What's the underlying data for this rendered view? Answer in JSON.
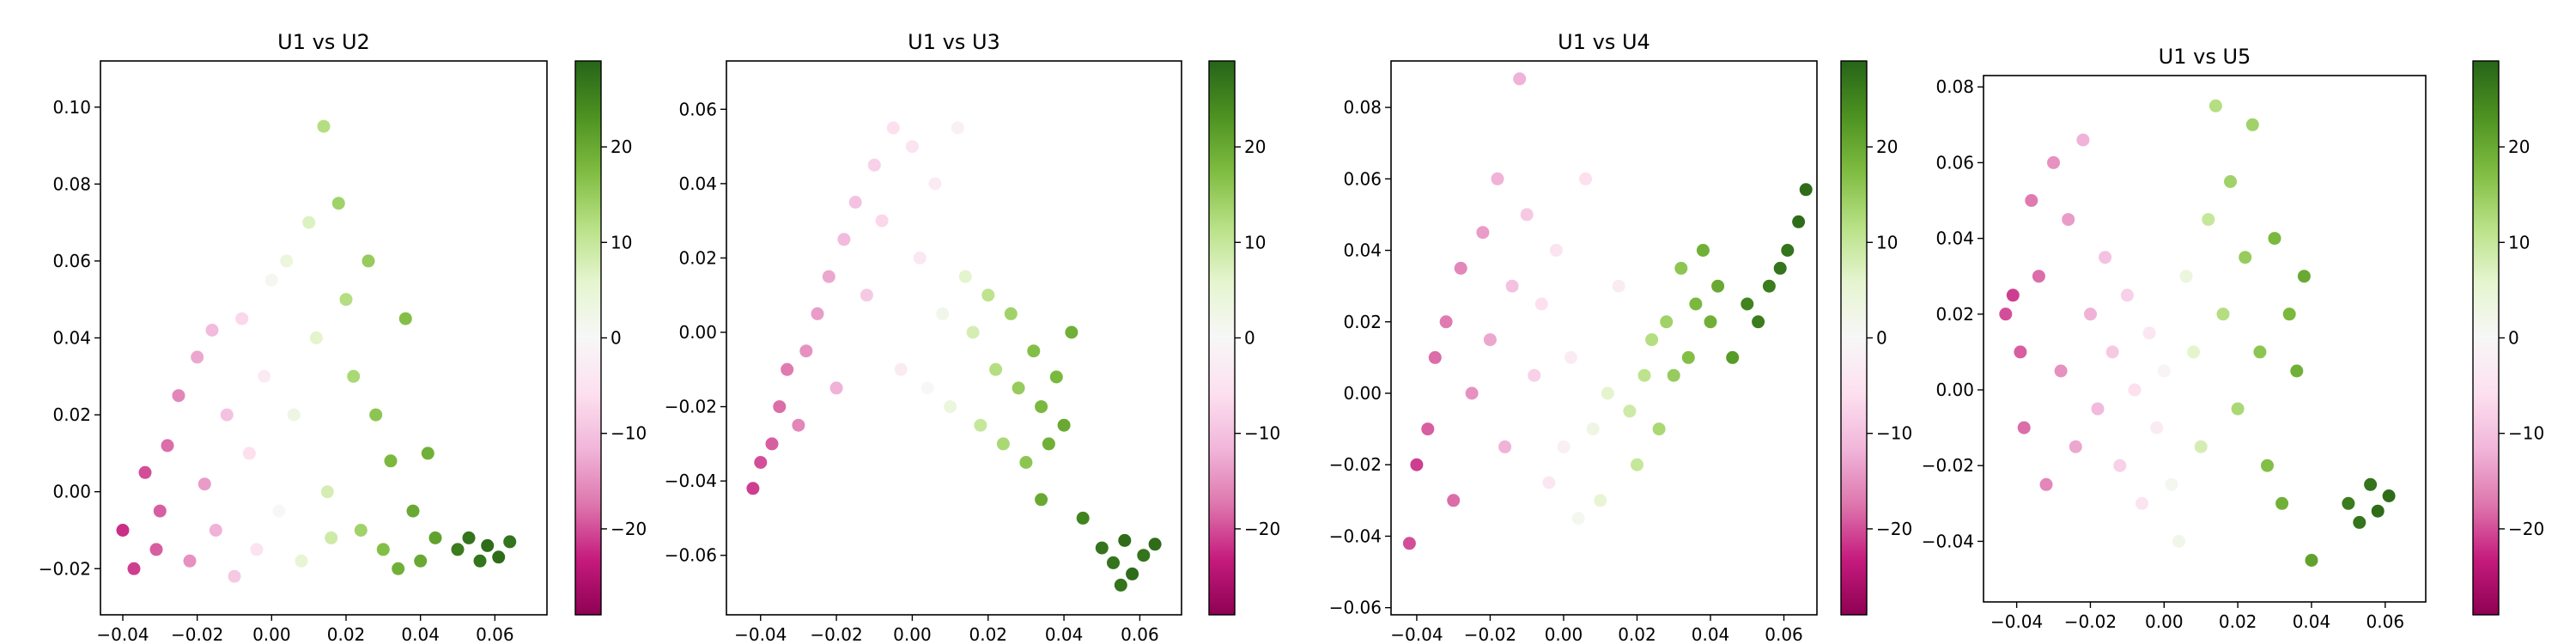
{
  "chart_data": [
    {
      "type": "scatter",
      "title": "U1 vs U2",
      "xlim": [
        -0.046,
        0.074
      ],
      "ylim": [
        -0.032,
        0.112
      ],
      "xticks": [
        -0.04,
        -0.02,
        0.0,
        0.02,
        0.04,
        0.06
      ],
      "xtick_labels": [
        "−0.04",
        "−0.02",
        "0.00",
        "0.02",
        "0.04",
        "0.06"
      ],
      "yticks": [
        -0.02,
        0.0,
        0.02,
        0.04,
        0.06,
        0.08,
        0.1
      ],
      "ytick_labels": [
        "−0.02",
        "0.00",
        "0.02",
        "0.04",
        "0.06",
        "0.08",
        "0.10"
      ],
      "colorbar": {
        "range": [
          -29,
          29
        ],
        "ticks": [
          -20,
          -10,
          0,
          10,
          20
        ],
        "tick_labels": [
          "−20",
          "−10",
          "0",
          "10",
          "20"
        ],
        "colormap": "PiYG"
      },
      "points": [
        [
          -0.04,
          -0.01,
          -22
        ],
        [
          -0.037,
          -0.02,
          -21
        ],
        [
          -0.034,
          0.005,
          -20
        ],
        [
          -0.031,
          -0.015,
          -19
        ],
        [
          -0.028,
          0.012,
          -18
        ],
        [
          -0.03,
          -0.005,
          -19
        ],
        [
          -0.025,
          0.025,
          -16
        ],
        [
          -0.022,
          -0.018,
          -15
        ],
        [
          -0.02,
          0.035,
          -13
        ],
        [
          -0.018,
          0.002,
          -14
        ],
        [
          -0.016,
          0.042,
          -11
        ],
        [
          -0.015,
          -0.01,
          -12
        ],
        [
          -0.012,
          0.02,
          -10
        ],
        [
          -0.01,
          -0.022,
          -9
        ],
        [
          -0.008,
          0.045,
          -7
        ],
        [
          -0.006,
          0.01,
          -6
        ],
        [
          -0.004,
          -0.015,
          -5
        ],
        [
          -0.002,
          0.03,
          -3
        ],
        [
          0.0,
          0.055,
          1
        ],
        [
          0.002,
          -0.005,
          0
        ],
        [
          0.004,
          0.06,
          4
        ],
        [
          0.006,
          0.02,
          3
        ],
        [
          0.008,
          -0.018,
          5
        ],
        [
          0.01,
          0.07,
          7
        ],
        [
          0.012,
          0.04,
          6
        ],
        [
          0.014,
          0.095,
          12
        ],
        [
          0.015,
          0.0,
          8
        ],
        [
          0.016,
          -0.012,
          9
        ],
        [
          0.018,
          0.075,
          14
        ],
        [
          0.02,
          0.05,
          12
        ],
        [
          0.022,
          0.03,
          13
        ],
        [
          0.024,
          -0.01,
          14
        ],
        [
          0.026,
          0.06,
          15
        ],
        [
          0.028,
          0.02,
          16
        ],
        [
          0.03,
          -0.015,
          17
        ],
        [
          0.032,
          0.008,
          18
        ],
        [
          0.034,
          -0.02,
          19
        ],
        [
          0.036,
          0.045,
          17
        ],
        [
          0.038,
          -0.005,
          20
        ],
        [
          0.04,
          -0.018,
          20
        ],
        [
          0.042,
          0.01,
          19
        ],
        [
          0.044,
          -0.012,
          21
        ],
        [
          0.05,
          -0.015,
          26
        ],
        [
          0.053,
          -0.012,
          27
        ],
        [
          0.056,
          -0.018,
          27
        ],
        [
          0.058,
          -0.014,
          28
        ],
        [
          0.061,
          -0.017,
          28
        ],
        [
          0.064,
          -0.013,
          27
        ]
      ]
    },
    {
      "type": "scatter",
      "title": "U1 vs U3",
      "xlim": [
        -0.049,
        0.071
      ],
      "ylim": [
        -0.076,
        0.073
      ],
      "xticks": [
        -0.04,
        -0.02,
        0.0,
        0.02,
        0.04,
        0.06
      ],
      "xtick_labels": [
        "−0.04",
        "−0.02",
        "0.00",
        "0.02",
        "0.04",
        "0.06"
      ],
      "yticks": [
        -0.06,
        -0.04,
        -0.02,
        0.0,
        0.02,
        0.04,
        0.06
      ],
      "ytick_labels": [
        "−0.06",
        "−0.04",
        "−0.02",
        "0.00",
        "0.02",
        "0.04",
        "0.06"
      ],
      "colorbar": {
        "range": [
          -29,
          29
        ],
        "ticks": [
          -20,
          -10,
          0,
          10,
          20
        ],
        "tick_labels": [
          "−20",
          "−10",
          "0",
          "10",
          "20"
        ],
        "colormap": "PiYG"
      },
      "points": [
        [
          -0.042,
          -0.042,
          -21
        ],
        [
          -0.04,
          -0.035,
          -20
        ],
        [
          -0.037,
          -0.03,
          -19
        ],
        [
          -0.035,
          -0.02,
          -18
        ],
        [
          -0.033,
          -0.01,
          -17
        ],
        [
          -0.03,
          -0.025,
          -16
        ],
        [
          -0.028,
          -0.005,
          -15
        ],
        [
          -0.025,
          0.005,
          -14
        ],
        [
          -0.022,
          0.015,
          -13
        ],
        [
          -0.02,
          -0.015,
          -12
        ],
        [
          -0.018,
          0.025,
          -11
        ],
        [
          -0.015,
          0.035,
          -10
        ],
        [
          -0.012,
          0.01,
          -9
        ],
        [
          -0.01,
          0.045,
          -8
        ],
        [
          -0.008,
          0.03,
          -7
        ],
        [
          -0.005,
          0.055,
          -6
        ],
        [
          -0.003,
          -0.01,
          -3
        ],
        [
          0.0,
          0.05,
          -5
        ],
        [
          0.002,
          0.02,
          -4
        ],
        [
          0.004,
          -0.015,
          0
        ],
        [
          0.006,
          0.04,
          -3
        ],
        [
          0.008,
          0.005,
          2
        ],
        [
          0.01,
          -0.02,
          4
        ],
        [
          0.012,
          0.055,
          -2
        ],
        [
          0.014,
          0.015,
          6
        ],
        [
          0.016,
          0.0,
          8
        ],
        [
          0.018,
          -0.025,
          10
        ],
        [
          0.02,
          0.01,
          11
        ],
        [
          0.022,
          -0.01,
          12
        ],
        [
          0.024,
          -0.03,
          13
        ],
        [
          0.026,
          0.005,
          14
        ],
        [
          0.028,
          -0.015,
          15
        ],
        [
          0.03,
          -0.035,
          16
        ],
        [
          0.032,
          -0.005,
          17
        ],
        [
          0.034,
          -0.02,
          18
        ],
        [
          0.036,
          -0.03,
          19
        ],
        [
          0.038,
          -0.012,
          18
        ],
        [
          0.04,
          -0.025,
          20
        ],
        [
          0.042,
          0.0,
          19
        ],
        [
          0.034,
          -0.045,
          20
        ],
        [
          0.05,
          -0.058,
          27
        ],
        [
          0.053,
          -0.062,
          27
        ],
        [
          0.056,
          -0.056,
          28
        ],
        [
          0.058,
          -0.065,
          28
        ],
        [
          0.061,
          -0.06,
          27
        ],
        [
          0.064,
          -0.057,
          28
        ],
        [
          0.055,
          -0.068,
          27
        ],
        [
          0.045,
          -0.05,
          25
        ]
      ]
    },
    {
      "type": "scatter",
      "title": "U1 vs U4",
      "xlim": [
        -0.047,
        0.069
      ],
      "ylim": [
        -0.062,
        0.093
      ],
      "xticks": [
        -0.04,
        -0.02,
        0.0,
        0.02,
        0.04,
        0.06
      ],
      "xtick_labels": [
        "−0.04",
        "−0.02",
        "0.00",
        "0.02",
        "0.04",
        "0.06"
      ],
      "yticks": [
        -0.06,
        -0.04,
        -0.02,
        0.0,
        0.02,
        0.04,
        0.06,
        0.08
      ],
      "ytick_labels": [
        "−0.06",
        "−0.04",
        "−0.02",
        "0.00",
        "0.02",
        "0.04",
        "0.06",
        "0.08"
      ],
      "colorbar": {
        "range": [
          -29,
          29
        ],
        "ticks": [
          -20,
          -10,
          0,
          10,
          20
        ],
        "tick_labels": [
          "−20",
          "−10",
          "0",
          "10",
          "20"
        ],
        "colormap": "PiYG"
      },
      "points": [
        [
          -0.042,
          -0.042,
          -20
        ],
        [
          -0.04,
          -0.02,
          -21
        ],
        [
          -0.037,
          -0.01,
          -19
        ],
        [
          -0.035,
          0.01,
          -18
        ],
        [
          -0.032,
          0.02,
          -17
        ],
        [
          -0.03,
          -0.03,
          -18
        ],
        [
          -0.028,
          0.035,
          -16
        ],
        [
          -0.025,
          0.0,
          -15
        ],
        [
          -0.022,
          0.045,
          -14
        ],
        [
          -0.02,
          0.015,
          -13
        ],
        [
          -0.018,
          0.06,
          -12
        ],
        [
          -0.016,
          -0.015,
          -12
        ],
        [
          -0.014,
          0.03,
          -10
        ],
        [
          -0.012,
          0.088,
          -12
        ],
        [
          -0.01,
          0.05,
          -9
        ],
        [
          -0.008,
          0.005,
          -8
        ],
        [
          -0.006,
          0.025,
          -6
        ],
        [
          -0.004,
          -0.025,
          -4
        ],
        [
          -0.002,
          0.04,
          -5
        ],
        [
          0.0,
          -0.015,
          -2
        ],
        [
          0.002,
          0.01,
          -3
        ],
        [
          0.004,
          -0.035,
          1
        ],
        [
          0.006,
          0.06,
          -6
        ],
        [
          0.008,
          -0.01,
          3
        ],
        [
          0.01,
          -0.03,
          5
        ],
        [
          0.012,
          0.0,
          6
        ],
        [
          0.015,
          0.03,
          -3
        ],
        [
          0.018,
          -0.005,
          9
        ],
        [
          0.02,
          -0.02,
          10
        ],
        [
          0.022,
          0.005,
          11
        ],
        [
          0.024,
          0.015,
          12
        ],
        [
          0.026,
          -0.01,
          13
        ],
        [
          0.028,
          0.02,
          14
        ],
        [
          0.03,
          0.005,
          15
        ],
        [
          0.032,
          0.035,
          16
        ],
        [
          0.034,
          0.01,
          17
        ],
        [
          0.036,
          0.025,
          18
        ],
        [
          0.038,
          0.04,
          19
        ],
        [
          0.04,
          0.02,
          19
        ],
        [
          0.042,
          0.03,
          20
        ],
        [
          0.046,
          0.01,
          22
        ],
        [
          0.05,
          0.025,
          25
        ],
        [
          0.053,
          0.02,
          26
        ],
        [
          0.056,
          0.03,
          26
        ],
        [
          0.059,
          0.035,
          27
        ],
        [
          0.061,
          0.04,
          27
        ],
        [
          0.064,
          0.048,
          28
        ],
        [
          0.066,
          0.057,
          28
        ]
      ]
    },
    {
      "type": "scatter",
      "title": "U1 vs U5",
      "xlim": [
        -0.049,
        0.071
      ],
      "ylim": [
        -0.056,
        0.083
      ],
      "xticks": [
        -0.04,
        -0.02,
        0.0,
        0.02,
        0.04,
        0.06
      ],
      "xtick_labels": [
        "−0.04",
        "−0.02",
        "0.00",
        "0.02",
        "0.04",
        "0.06"
      ],
      "yticks": [
        -0.04,
        -0.02,
        0.0,
        0.02,
        0.04,
        0.06,
        0.08
      ],
      "ytick_labels": [
        "−0.04",
        "−0.02",
        "0.00",
        "0.02",
        "0.04",
        "0.06",
        "0.08"
      ],
      "colorbar": {
        "range": [
          -29,
          29
        ],
        "ticks": [
          -20,
          -10,
          0,
          10,
          20
        ],
        "tick_labels": [
          "−20",
          "−10",
          "0",
          "10",
          "20"
        ],
        "colormap": "PiYG"
      },
      "points": [
        [
          -0.043,
          0.02,
          -20
        ],
        [
          -0.041,
          0.025,
          -21
        ],
        [
          -0.039,
          0.01,
          -19
        ],
        [
          -0.038,
          -0.01,
          -18
        ],
        [
          -0.036,
          0.05,
          -17
        ],
        [
          -0.034,
          0.03,
          -18
        ],
        [
          -0.032,
          -0.025,
          -16
        ],
        [
          -0.03,
          0.06,
          -15
        ],
        [
          -0.028,
          0.005,
          -15
        ],
        [
          -0.026,
          0.045,
          -14
        ],
        [
          -0.024,
          -0.015,
          -13
        ],
        [
          -0.022,
          0.066,
          -12
        ],
        [
          -0.02,
          0.02,
          -12
        ],
        [
          -0.018,
          -0.005,
          -11
        ],
        [
          -0.016,
          0.035,
          -10
        ],
        [
          -0.014,
          0.01,
          -9
        ],
        [
          -0.012,
          -0.02,
          -8
        ],
        [
          -0.01,
          0.025,
          -8
        ],
        [
          -0.008,
          0.0,
          -6
        ],
        [
          -0.006,
          -0.03,
          -5
        ],
        [
          -0.004,
          0.015,
          -4
        ],
        [
          -0.002,
          -0.01,
          -3
        ],
        [
          0.0,
          0.005,
          -1
        ],
        [
          0.002,
          -0.025,
          1
        ],
        [
          0.004,
          -0.04,
          2
        ],
        [
          0.006,
          0.03,
          4
        ],
        [
          0.008,
          0.01,
          6
        ],
        [
          0.01,
          -0.015,
          8
        ],
        [
          0.012,
          0.045,
          10
        ],
        [
          0.014,
          0.075,
          12
        ],
        [
          0.016,
          0.02,
          12
        ],
        [
          0.018,
          0.055,
          14
        ],
        [
          0.02,
          -0.005,
          13
        ],
        [
          0.022,
          0.035,
          15
        ],
        [
          0.024,
          0.07,
          14
        ],
        [
          0.026,
          0.01,
          16
        ],
        [
          0.028,
          -0.02,
          17
        ],
        [
          0.03,
          0.04,
          18
        ],
        [
          0.032,
          -0.03,
          19
        ],
        [
          0.034,
          0.02,
          18
        ],
        [
          0.036,
          0.005,
          19
        ],
        [
          0.038,
          0.03,
          20
        ],
        [
          0.04,
          -0.045,
          21
        ],
        [
          0.05,
          -0.03,
          26
        ],
        [
          0.053,
          -0.035,
          27
        ],
        [
          0.056,
          -0.025,
          27
        ],
        [
          0.058,
          -0.032,
          28
        ],
        [
          0.061,
          -0.028,
          28
        ]
      ]
    }
  ]
}
